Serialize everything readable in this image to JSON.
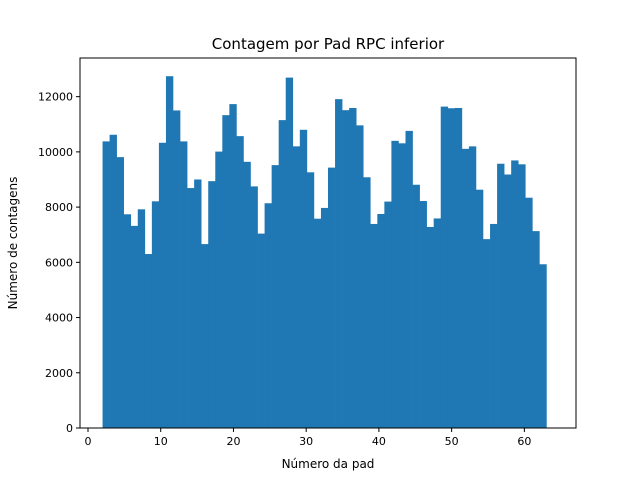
{
  "chart_data": {
    "type": "bar",
    "title": "Contagem por Pad RPC inferior",
    "xlabel": "Número da pad",
    "ylabel": "Número de contagens",
    "xlim": [
      -1.1,
      67.1
    ],
    "ylim": [
      0,
      13400
    ],
    "xticks": [
      0,
      10,
      20,
      30,
      40,
      50,
      60
    ],
    "yticks": [
      0,
      2000,
      4000,
      6000,
      8000,
      10000,
      12000
    ],
    "grid": false,
    "bar_color": "#1f77b4",
    "bin_start": 2,
    "bin_width": 0.96875,
    "values": [
      10380,
      10620,
      9810,
      7740,
      7320,
      7920,
      6300,
      8210,
      10330,
      12740,
      11500,
      10380,
      8690,
      9000,
      6660,
      8940,
      10010,
      11330,
      11730,
      10570,
      9640,
      8750,
      7040,
      8140,
      9520,
      11150,
      12690,
      10200,
      10800,
      9260,
      7580,
      7970,
      9430,
      11910,
      11510,
      11590,
      10960,
      9080,
      7390,
      7750,
      8200,
      10400,
      10310,
      10760,
      8810,
      8220,
      7280,
      7590,
      11640,
      11580,
      11590,
      10110,
      10200,
      8630,
      6840,
      7390,
      9570,
      9180,
      9690,
      9550,
      8340,
      7130,
      5930
    ]
  }
}
